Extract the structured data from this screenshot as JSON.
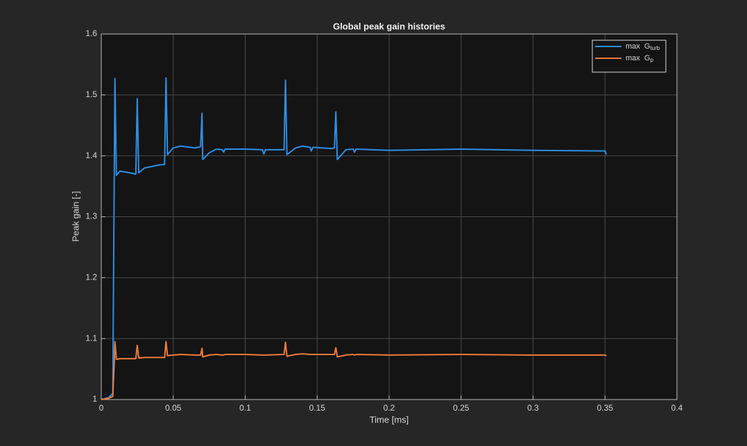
{
  "chart_data": {
    "type": "line",
    "title": "Global peak gain histories",
    "xlabel": "Time [ms]",
    "ylabel": "Peak gain [-]",
    "x": [
      0,
      0.005,
      0.008,
      0.009,
      0.0095,
      0.0105,
      0.013,
      0.02,
      0.024,
      0.025,
      0.026,
      0.03,
      0.04,
      0.044,
      0.045,
      0.046,
      0.05,
      0.055,
      0.065,
      0.069,
      0.07,
      0.0705,
      0.075,
      0.08,
      0.084,
      0.085,
      0.086,
      0.1,
      0.112,
      0.113,
      0.114,
      0.127,
      0.128,
      0.129,
      0.135,
      0.14,
      0.145,
      0.146,
      0.147,
      0.16,
      0.162,
      0.163,
      0.164,
      0.17,
      0.175,
      0.176,
      0.177,
      0.2,
      0.25,
      0.3,
      0.35,
      0.351
    ],
    "series": [
      {
        "name": "max  G",
        "name_sub": "turb",
        "color": "#2e8fe6",
        "values": [
          1.0,
          1.003,
          1.01,
          1.36,
          1.527,
          1.368,
          1.375,
          1.372,
          1.37,
          1.494,
          1.372,
          1.38,
          1.385,
          1.386,
          1.528,
          1.402,
          1.413,
          1.416,
          1.413,
          1.415,
          1.47,
          1.394,
          1.405,
          1.411,
          1.41,
          1.406,
          1.411,
          1.411,
          1.41,
          1.403,
          1.41,
          1.41,
          1.524,
          1.402,
          1.413,
          1.416,
          1.414,
          1.408,
          1.414,
          1.412,
          1.413,
          1.472,
          1.394,
          1.41,
          1.411,
          1.406,
          1.411,
          1.409,
          1.411,
          1.409,
          1.408,
          1.402
        ]
      },
      {
        "name": "max  G",
        "name_sub": "p",
        "color": "#f07c3a",
        "values": [
          1.0,
          1.002,
          1.005,
          1.06,
          1.095,
          1.066,
          1.067,
          1.067,
          1.067,
          1.089,
          1.068,
          1.069,
          1.069,
          1.069,
          1.095,
          1.072,
          1.073,
          1.074,
          1.073,
          1.073,
          1.084,
          1.07,
          1.073,
          1.074,
          1.073,
          1.073,
          1.074,
          1.074,
          1.073,
          1.073,
          1.073,
          1.074,
          1.094,
          1.071,
          1.074,
          1.075,
          1.074,
          1.074,
          1.074,
          1.074,
          1.074,
          1.085,
          1.07,
          1.073,
          1.074,
          1.073,
          1.074,
          1.073,
          1.074,
          1.073,
          1.073,
          1.072
        ]
      }
    ],
    "xlim": [
      0,
      0.4
    ],
    "xticks": [
      0,
      0.05,
      0.1,
      0.15,
      0.2,
      0.25,
      0.3,
      0.35,
      0.4
    ],
    "ylim": [
      1,
      1.6
    ],
    "yticks": [
      1,
      1.1,
      1.2,
      1.3,
      1.4,
      1.5,
      1.6
    ],
    "grid": true,
    "legend": "upper right"
  }
}
